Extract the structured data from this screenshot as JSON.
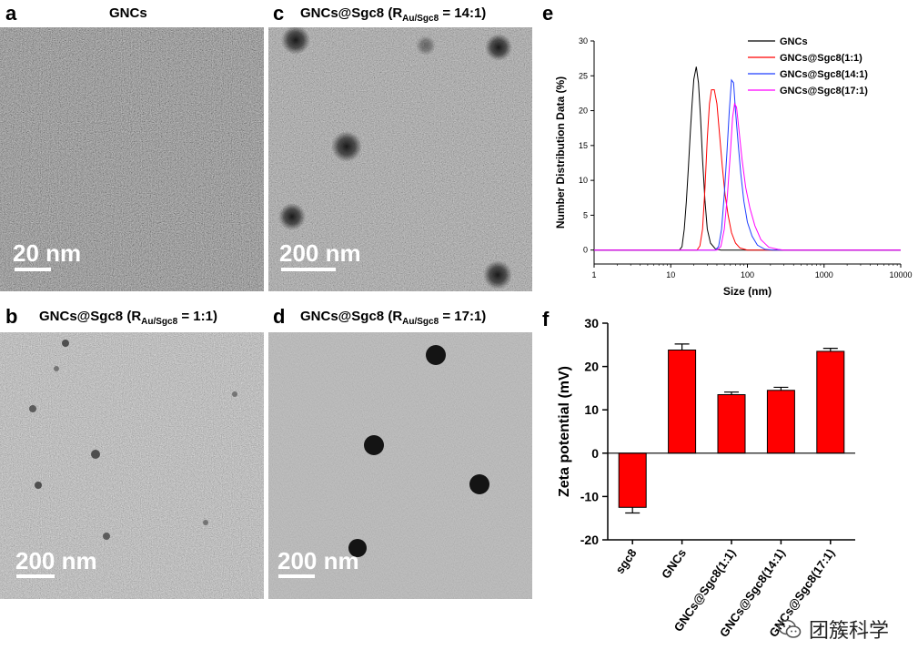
{
  "panels": {
    "a": {
      "letter": "a",
      "title": "GNCs",
      "scale": "20 nm"
    },
    "b": {
      "letter": "b",
      "title_main": "GNCs@Sgc8 (R",
      "title_sub": "Au/Sgc8",
      "title_end": " = 1:1)",
      "scale": "200 nm"
    },
    "c": {
      "letter": "c",
      "title_main": "GNCs@Sgc8 (R",
      "title_sub": "Au/Sgc8",
      "title_end": " = 14:1)",
      "scale": "200 nm"
    },
    "d": {
      "letter": "d",
      "title_main": "GNCs@Sgc8 (R",
      "title_sub": "Au/Sgc8",
      "title_end": " = 17:1)",
      "scale": "200 nm"
    },
    "e": {
      "letter": "e"
    },
    "f": {
      "letter": "f"
    }
  },
  "watermark": {
    "text": "团簇科学"
  },
  "chart_data": [
    {
      "id": "e",
      "type": "line",
      "xlabel": "Size (nm)",
      "ylabel": "Number Distribution Data (%)",
      "xscale": "log",
      "xlim": [
        1,
        10000
      ],
      "ylim": [
        -2,
        30
      ],
      "xticks": [
        1,
        10,
        100,
        1000,
        10000
      ],
      "xtick_labels": [
        "1",
        "10",
        "100",
        "1000",
        "10000"
      ],
      "yticks": [
        0,
        5,
        10,
        15,
        20,
        25,
        30
      ],
      "legend_position": "top-right",
      "series": [
        {
          "name": "GNCs",
          "color": "#000000",
          "points": [
            [
              1,
              0
            ],
            [
              13,
              0
            ],
            [
              14,
              0.5
            ],
            [
              15,
              3
            ],
            [
              16,
              7
            ],
            [
              17,
              12
            ],
            [
              18,
              17
            ],
            [
              19,
              21
            ],
            [
              20,
              24.5
            ],
            [
              21.5,
              26.3
            ],
            [
              23,
              24
            ],
            [
              24.5,
              19
            ],
            [
              26,
              13
            ],
            [
              28,
              7
            ],
            [
              30,
              3
            ],
            [
              33,
              1
            ],
            [
              38,
              0.2
            ],
            [
              45,
              0
            ],
            [
              10000,
              0
            ]
          ]
        },
        {
          "name": "GNCs@Sgc8(1:1)",
          "color": "#ff0000",
          "points": [
            [
              1,
              0
            ],
            [
              22,
              0
            ],
            [
              24,
              0.6
            ],
            [
              26,
              3
            ],
            [
              28,
              9
            ],
            [
              30,
              16
            ],
            [
              32,
              21
            ],
            [
              34,
              23
            ],
            [
              37,
              23
            ],
            [
              40,
              21
            ],
            [
              43,
              17
            ],
            [
              47,
              12
            ],
            [
              51,
              8
            ],
            [
              56,
              5
            ],
            [
              62,
              2.5
            ],
            [
              70,
              1
            ],
            [
              80,
              0.3
            ],
            [
              100,
              0
            ],
            [
              10000,
              0
            ]
          ]
        },
        {
          "name": "GNCs@Sgc8(14:1)",
          "color": "#1f3fff",
          "points": [
            [
              1,
              0
            ],
            [
              38,
              0
            ],
            [
              42,
              0.5
            ],
            [
              46,
              3
            ],
            [
              50,
              8
            ],
            [
              54,
              14
            ],
            [
              58,
              20
            ],
            [
              62,
              24.4
            ],
            [
              66,
              24
            ],
            [
              70,
              20
            ],
            [
              76,
              15
            ],
            [
              82,
              11
            ],
            [
              90,
              7
            ],
            [
              100,
              4
            ],
            [
              115,
              2
            ],
            [
              135,
              0.7
            ],
            [
              170,
              0.1
            ],
            [
              220,
              0
            ],
            [
              10000,
              0
            ]
          ]
        },
        {
          "name": "GNCs@Sgc8(17:1)",
          "color": "#ff00ff",
          "points": [
            [
              1,
              0
            ],
            [
              40,
              0
            ],
            [
              45,
              0.5
            ],
            [
              50,
              3
            ],
            [
              55,
              8
            ],
            [
              60,
              14
            ],
            [
              64,
              19
            ],
            [
              68,
              21
            ],
            [
              72,
              20.5
            ],
            [
              78,
              17
            ],
            [
              85,
              13
            ],
            [
              95,
              9
            ],
            [
              108,
              6
            ],
            [
              125,
              3.5
            ],
            [
              150,
              1.5
            ],
            [
              190,
              0.4
            ],
            [
              250,
              0.1
            ],
            [
              300,
              0
            ],
            [
              10000,
              0
            ]
          ]
        }
      ]
    },
    {
      "id": "f",
      "type": "bar",
      "ylabel": "Zeta potential (mV)",
      "ylim": [
        -20,
        30
      ],
      "yticks": [
        -20,
        -10,
        0,
        10,
        20,
        30
      ],
      "categories": [
        "sgc8",
        "GNCs",
        "GNCs@Sgc8(1:1)",
        "GNCs@Sgc8(14:1)",
        "GNCs@Sgc8(17:1)"
      ],
      "values": [
        -12.5,
        23.8,
        13.5,
        14.5,
        23.5
      ],
      "errors": [
        1.3,
        1.4,
        0.6,
        0.7,
        0.7
      ],
      "bar_color": "#ff0000"
    }
  ]
}
